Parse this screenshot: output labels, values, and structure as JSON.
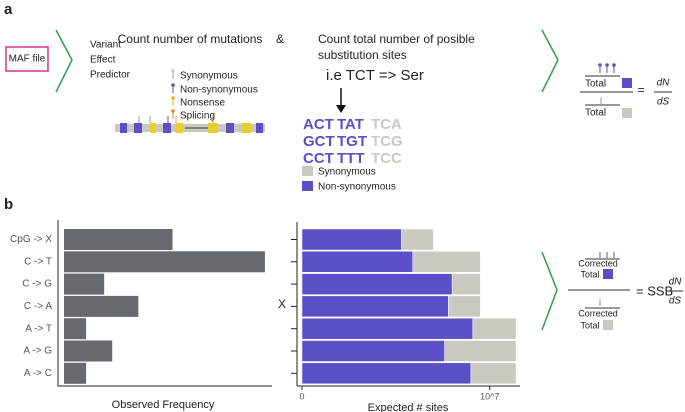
{
  "panel_a": {
    "label": "a",
    "input": "MAF file",
    "tool": [
      "Variant",
      "Effect",
      "Predictor"
    ],
    "mutations_title": "Count number of mutations",
    "and": "&",
    "sites_title": [
      "Count total number of posible",
      "substitution sites"
    ],
    "mutation_legend": [
      "Synonymous",
      "Non-synonymous",
      "Nonsense",
      "Splicing"
    ],
    "example": "i.e TCT => Ser",
    "codons": [
      [
        "ACT",
        "TAT",
        "TCA"
      ],
      [
        "GCT",
        "TGT",
        "TCG"
      ],
      [
        "CCT",
        "TTT",
        "TCC"
      ]
    ],
    "formula": {
      "numerator": "Total",
      "denominator": "Total",
      "equals": "=",
      "dN": "dN",
      "dS": "dS"
    }
  },
  "panel_b": {
    "label": "b",
    "times": "X",
    "formula": {
      "numerator": [
        "Corrected",
        "Total"
      ],
      "denominator": [
        "Corrected",
        "Total"
      ],
      "equals": "= SSB",
      "dN": "dN",
      "dS": "dS"
    }
  },
  "chart_data": [
    {
      "type": "hbar",
      "xlabel": "Observed Frequency",
      "categories": [
        "CpG -> X",
        "C -> T",
        "C -> G",
        "C -> A",
        "A -> T",
        "A -> G",
        "A -> C"
      ],
      "values": [
        108,
        200,
        40,
        74,
        22,
        48,
        22
      ],
      "color": "#666a6e",
      "xlim": [
        0,
        215
      ]
    },
    {
      "type": "stacked-hbar",
      "xlabel": "Expected # sites",
      "series": [
        {
          "name": "Non-synonymous",
          "color": "#5b4fc7",
          "values": [
            5300000,
            5900000,
            8000000,
            7800000,
            9100000,
            7600000,
            9000000
          ]
        },
        {
          "name": "Synonymous",
          "color": "#c9c9c2",
          "values": [
            1700000,
            3600000,
            1500000,
            1700000,
            2300000,
            3800000,
            2400000
          ]
        }
      ],
      "xlim": [
        0,
        11400000
      ],
      "xticks": [
        0,
        {
          "value": 10000000,
          "label": "10^7"
        }
      ]
    }
  ]
}
